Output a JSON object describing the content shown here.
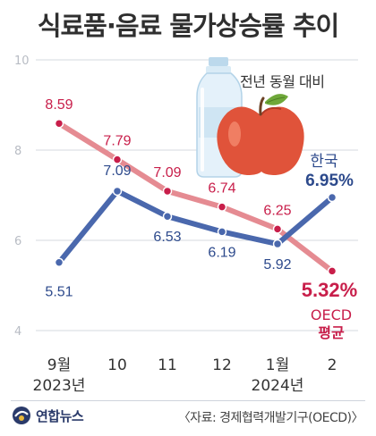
{
  "title": "식료품·음료 물가상승률 추이",
  "subtitle": "전년 동월 대비",
  "source": "〈자료: 경제협력개발기구(OECD)〉",
  "logo_text": "연합뉴스",
  "colors": {
    "korea": "#4a68ad",
    "korea_dark": "#2d4a8c",
    "oecd": "#e58b92",
    "oecd_point": "#c81e4a",
    "grid": "#d5d9df",
    "tick_text": "#b8bcc4"
  },
  "icons": [
    "water-bottle-icon",
    "apple-icon",
    "yonhap-logo-icon"
  ],
  "chart_data": {
    "type": "line",
    "title": "식료품·음료 물가상승률 추이",
    "subtitle": "전년 동월 대비",
    "categories": [
      "9월",
      "10",
      "11",
      "12",
      "1월",
      "2"
    ],
    "category_sublabels": [
      "2023년",
      "",
      "",
      "",
      "2024년",
      ""
    ],
    "ylim": [
      4,
      10
    ],
    "yticks": [
      4,
      6,
      8,
      10
    ],
    "grid": true,
    "series": [
      {
        "name": "한국",
        "values": [
          5.51,
          7.09,
          6.53,
          6.19,
          5.92,
          6.95
        ],
        "labels": [
          "5.51",
          "7.09",
          "6.53",
          "6.19",
          "5.92",
          "6.95%"
        ],
        "color": "#4a68ad"
      },
      {
        "name": "OECD 평균",
        "values": [
          8.59,
          7.79,
          7.09,
          6.74,
          6.25,
          5.32
        ],
        "labels": [
          "8.59",
          "7.79",
          "7.09",
          "6.74",
          "6.25",
          "5.32%"
        ],
        "color": "#e58b92"
      }
    ],
    "series_name_lines": [
      [
        "한국"
      ],
      [
        "OECD",
        "평균"
      ]
    ]
  }
}
